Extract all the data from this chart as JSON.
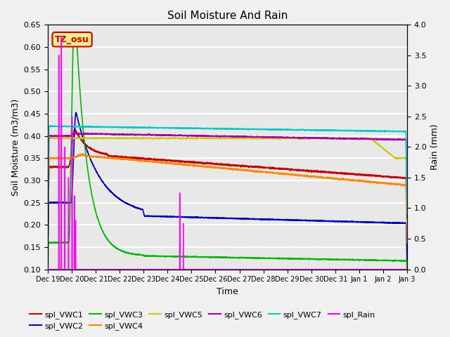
{
  "title": "Soil Moisture And Rain",
  "xlabel": "Time",
  "ylabel_left": "Soil Moisture (m3/m3)",
  "ylabel_right": "Rain (mm)",
  "ylim_left": [
    0.1,
    0.65
  ],
  "ylim_right": [
    0.0,
    4.0
  ],
  "yticks_left": [
    0.1,
    0.15,
    0.2,
    0.25,
    0.3,
    0.35,
    0.4,
    0.45,
    0.5,
    0.55,
    0.6,
    0.65
  ],
  "yticks_right": [
    0.0,
    0.5,
    1.0,
    1.5,
    2.0,
    2.5,
    3.0,
    3.5,
    4.0
  ],
  "annotation_text": "TZ_osu",
  "annotation_color": "#cc0000",
  "annotation_bg": "#ffee88",
  "series_colors": {
    "VWC1": "#cc0000",
    "VWC2": "#0000cc",
    "VWC3": "#00bb00",
    "VWC4": "#ff8800",
    "VWC5": "#cccc00",
    "VWC6": "#aa00aa",
    "VWC7": "#00cccc",
    "Rain": "#ff00ff"
  },
  "bg_color": "#e8e8e8",
  "grid_color": "#ffffff",
  "fig_bg": "#f0f0f0"
}
